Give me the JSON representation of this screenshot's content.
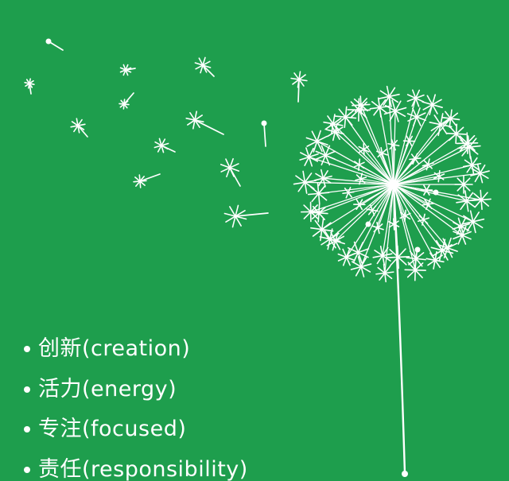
{
  "colors": {
    "background": "#1e9e4d",
    "ink": "#ffffff"
  },
  "illustration": {
    "subject": "dandelion-with-blowing-seeds"
  },
  "values": [
    {
      "label": "创新(creation)"
    },
    {
      "label": "活力(energy)"
    },
    {
      "label": "专注(focused)"
    },
    {
      "label": "责任(responsibility)"
    }
  ]
}
